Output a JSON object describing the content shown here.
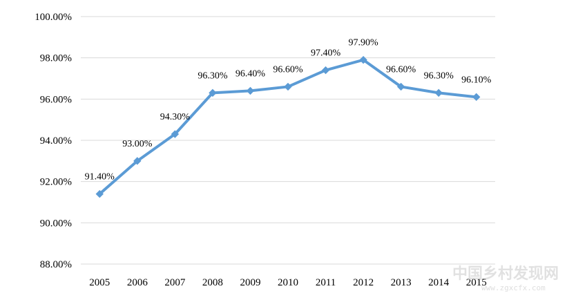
{
  "chart_data": {
    "type": "line",
    "categories": [
      "2005",
      "2006",
      "2007",
      "2008",
      "2009",
      "2010",
      "2011",
      "2012",
      "2013",
      "2014",
      "2015"
    ],
    "series": [
      {
        "values": [
          91.4,
          93.0,
          94.3,
          96.3,
          96.4,
          96.6,
          97.4,
          97.9,
          96.6,
          96.3,
          96.1
        ],
        "data_labels": [
          "91.40%",
          "93.00%",
          "94.30%",
          "96.30%",
          "96.40%",
          "96.60%",
          "97.40%",
          "97.90%",
          "96.60%",
          "96.30%",
          "96.10%"
        ],
        "color": "#5b9bd5",
        "marker": "diamond"
      }
    ],
    "yticks": [
      88,
      90,
      92,
      94,
      96,
      98,
      100
    ],
    "ytick_labels": [
      "88.00%",
      "90.00%",
      "92.00%",
      "94.00%",
      "96.00%",
      "98.00%",
      "100.00%"
    ],
    "ylim": [
      88,
      100
    ],
    "grid": true,
    "gridline_color": "#d9d9d9",
    "title": "",
    "xlabel": "",
    "ylabel": ""
  },
  "watermark": {
    "text": "中国乡村发现网",
    "url": "www.zgxcfx.com"
  }
}
